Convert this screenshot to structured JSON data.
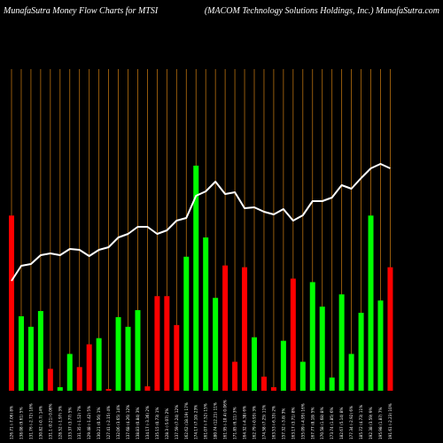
{
  "header": {
    "left": "MunafaSutra  Money Flow  Charts for MTSI",
    "right": "(MACOM Technology Solutions Holdings,  Inc.) MunafaSutra.com"
  },
  "chart_data": {
    "type": "bar+line",
    "title": "MunafaSutra  Money Flow  Charts for MTSI",
    "subtitle": "(MACOM Technology Solutions Holdings,  Inc.) MunafaSutra.com",
    "colors": {
      "background": "#000000",
      "grid": "#b8700f",
      "up": "#00ff00",
      "down": "#ff0000",
      "price_line": "#ffffff"
    },
    "categories": [
      "126.71 (-7.06) 8%",
      "138.08 (9.61) 5%",
      "131.76 (-2.72) 18%",
      "130.82 (-0.7) 14%",
      "131.1 (0.21) 0.06%",
      "128.52 (-1.97) 3%",
      "133.37 (3.77) 5%",
      "131.35 (-1.52) 7%",
      "129.48 (-1.42) 5%",
      "130.21 (0.56) 1%",
      "127.41 (-2.15) 4%",
      "132.06 (3.65) 14%",
      "137.68 (4.26) 12%",
      "138.83 (0.84) 3%",
      "134.17 (-3.36) 2%",
      "135.15 (0.73) 1%",
      "128.3 (-5.07) 2%",
      "137.59 (7.24) 12%",
      "162.62 (18.19) 17%",
      "174.17 (7.10) 23%",
      "161.07 (-7.52) 15%",
      "180.74 (12.21) 11%",
      "161.95 (-10.4) 0.06%",
      "171.85 (6.11) 3%",
      "164.32 (-4.38) 6%",
      "162.79 (-0.93) 3%",
      "174.58 (7.25) 11%",
      "163.53 (-6.33) 2%",
      "157.32 (-3.8) 3%",
      "163.17 (3.71) 8%",
      "155.09 (-4.95) 16%",
      "167.77 (8.18) 5%",
      "170.58 (1.68) 8%",
      "173.74 (1.85) 6%",
      "182.67 (5.14) 8%",
      "177.34 (-2.92) 6%",
      "185.72 (4.73) 11%",
      "192.38 (3.59) 9%",
      "195.98 (1.87) 7%",
      "191.61 (-2.23) 10%"
    ],
    "close": [
      126.71,
      138.08,
      131.76,
      130.82,
      131.1,
      128.52,
      133.37,
      131.35,
      129.48,
      130.21,
      127.41,
      132.06,
      137.68,
      138.83,
      134.17,
      135.15,
      128.3,
      137.59,
      162.62,
      174.17,
      161.07,
      180.74,
      161.95,
      171.85,
      164.32,
      162.79,
      174.58,
      163.53,
      157.32,
      163.17,
      155.09,
      167.77,
      170.58,
      173.74,
      182.67,
      177.34,
      185.72,
      192.38,
      195.98,
      191.61
    ],
    "line_y": [
      317,
      300,
      298,
      288,
      286,
      288,
      281,
      282,
      289,
      282,
      279,
      268,
      264,
      256,
      256,
      264,
      260,
      249,
      246,
      221,
      216,
      205,
      219,
      217,
      235,
      234,
      239,
      242,
      236,
      249,
      243,
      227,
      227,
      223,
      209,
      213,
      201,
      190,
      185,
      190
    ],
    "line_ylim": [
      180,
      440
    ],
    "series": [
      {
        "name": "",
        "color_key": "flow",
        "values": [
          200,
          85,
          73,
          91,
          25,
          4,
          42,
          27,
          53,
          60,
          2,
          84,
          73,
          92,
          5,
          108,
          108,
          75,
          153,
          257,
          175,
          106,
          143,
          33,
          141,
          61,
          16,
          4,
          57,
          128,
          33,
          124,
          96,
          15,
          110,
          42,
          89,
          200,
          103,
          141
        ],
        "colors": [
          "down",
          "up",
          "up",
          "up",
          "down",
          "up",
          "up",
          "down",
          "down",
          "up",
          "down",
          "up",
          "up",
          "up",
          "down",
          "down",
          "down",
          "down",
          "up",
          "up",
          "up",
          "up",
          "down",
          "down",
          "down",
          "up",
          "down",
          "down",
          "up",
          "down",
          "up",
          "up",
          "up",
          "up",
          "up",
          "up",
          "up",
          "up",
          "up",
          "down"
        ]
      }
    ],
    "ylim": [
      0,
      260
    ],
    "grid": true,
    "legend": "none",
    "xlabel": "",
    "ylabel": ""
  }
}
